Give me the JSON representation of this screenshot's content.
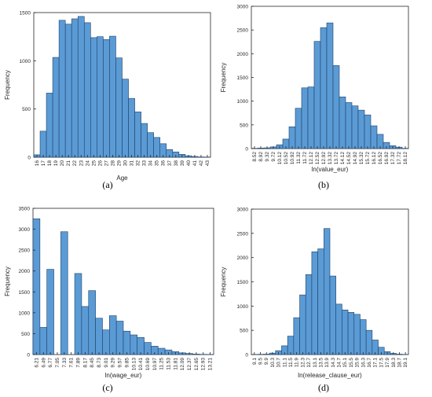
{
  "chart_data": [
    {
      "type": "bar",
      "caption": "(a)",
      "xlabel": "Age",
      "ylabel": "Frequency",
      "ylim": [
        0,
        1500
      ],
      "yticks": [
        "0",
        "500",
        "1000",
        "1500"
      ],
      "categories": [
        "16",
        "17",
        "18",
        "19",
        "20",
        "21",
        "22",
        "23",
        "24",
        "25",
        "26",
        "27",
        "28",
        "29",
        "30",
        "31",
        "32",
        "33",
        "34",
        "35",
        "36",
        "37",
        "38",
        "39",
        "40",
        "41",
        "42",
        "43"
      ],
      "values": [
        25,
        270,
        665,
        1035,
        1420,
        1380,
        1435,
        1460,
        1395,
        1240,
        1250,
        1220,
        1255,
        1030,
        810,
        610,
        470,
        350,
        255,
        205,
        140,
        80,
        55,
        30,
        15,
        8,
        3,
        2
      ],
      "color": "#5b9bd5",
      "edge": "#1f3f66"
    },
    {
      "type": "bar",
      "caption": "(b)",
      "xlabel": "ln(value_eur)",
      "ylabel": "Frequency",
      "ylim": [
        0,
        3000
      ],
      "yticks": [
        "0",
        "500",
        "1000",
        "1500",
        "2000",
        "2500",
        "3000"
      ],
      "categories": [
        "8.52",
        "8.92",
        "9.32",
        "9.72",
        "10.12",
        "10.52",
        "10.92",
        "11.32",
        "11.72",
        "12.12",
        "12.52",
        "12.92",
        "13.32",
        "13.72",
        "14.12",
        "14.52",
        "14.92",
        "15.32",
        "15.72",
        "16.12",
        "16.52",
        "16.92",
        "17.32",
        "17.72",
        "18.12"
      ],
      "values": [
        5,
        10,
        15,
        35,
        80,
        200,
        460,
        850,
        1280,
        1300,
        2260,
        2550,
        2650,
        1750,
        1090,
        970,
        900,
        810,
        710,
        480,
        300,
        130,
        60,
        30,
        5
      ],
      "color": "#5b9bd5",
      "edge": "#1f3f66"
    },
    {
      "type": "bar",
      "caption": "(c)",
      "xlabel": "ln(wage_eur)",
      "ylabel": "Frequency",
      "ylim": [
        0,
        3500
      ],
      "yticks": [
        "0",
        "500",
        "1000",
        "1500",
        "2000",
        "2500",
        "3000",
        "3500"
      ],
      "categories": [
        "6.21",
        "6.49",
        "6.77",
        "7.05",
        "7.33",
        "7.61",
        "7.89",
        "8.17",
        "8.45",
        "8.73",
        "9.01",
        "9.29",
        "9.57",
        "9.85",
        "10.13",
        "10.41",
        "10.69",
        "10.97",
        "11.25",
        "11.53",
        "11.81",
        "12.09",
        "12.37",
        "12.65",
        "12.93",
        "13.21"
      ],
      "values": [
        3250,
        650,
        2040,
        0,
        2940,
        0,
        1940,
        1150,
        1530,
        870,
        590,
        930,
        800,
        560,
        470,
        410,
        290,
        200,
        150,
        110,
        70,
        40,
        25,
        10,
        5,
        2
      ],
      "color": "#5b9bd5",
      "edge": "#1f3f66"
    },
    {
      "type": "bar",
      "caption": "(d)",
      "xlabel": "ln(release_clause_eur)",
      "ylabel": "Frequency",
      "ylim": [
        0,
        3000
      ],
      "yticks": [
        "0",
        "500",
        "1000",
        "1500",
        "2000",
        "2500",
        "3000"
      ],
      "categories": [
        "9.1",
        "9.5",
        "9.9",
        "10.3",
        "10.7",
        "11.1",
        "11.5",
        "11.9",
        "12.3",
        "12.7",
        "13.1",
        "13.5",
        "13.9",
        "14.3",
        "14.7",
        "15.1",
        "15.5",
        "15.9",
        "16.3",
        "16.7",
        "17.1",
        "17.5",
        "17.9",
        "18.3",
        "18.7",
        "19.1"
      ],
      "values": [
        3,
        5,
        8,
        30,
        80,
        180,
        380,
        760,
        1230,
        1650,
        2120,
        2180,
        2600,
        1620,
        1040,
        920,
        870,
        830,
        720,
        500,
        300,
        150,
        60,
        25,
        8,
        2
      ],
      "color": "#5b9bd5",
      "edge": "#1f3f66"
    }
  ]
}
